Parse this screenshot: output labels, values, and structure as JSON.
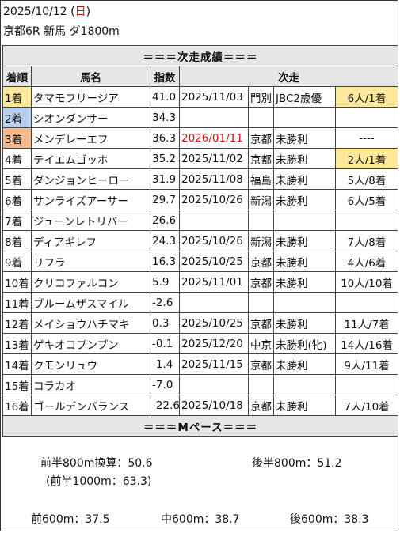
{
  "header": {
    "date": "2025/10/12",
    "dow": "日",
    "race_info": "京都6R 新馬 ダ1800m"
  },
  "table": {
    "title": "＝＝＝次走成績＝＝＝",
    "headers": {
      "rank": "着順",
      "horse": "馬名",
      "index": "指数",
      "next": "次走"
    },
    "rows": [
      {
        "rank": "1着",
        "horse": "タマモフリージア",
        "index": "41.0",
        "date": "2025/11/03",
        "place": "門別",
        "race": "JBC2歳優",
        "result": "6人/1着",
        "rank_hl": "yellow",
        "result_hl": "yellow",
        "date_red": false
      },
      {
        "rank": "2着",
        "horse": "シオンダンサー",
        "index": "34.3",
        "date": "",
        "place": "",
        "race": "",
        "result": "",
        "rank_hl": "blue",
        "result_hl": "",
        "date_red": false
      },
      {
        "rank": "3着",
        "horse": "メンデレーエフ",
        "index": "36.3",
        "date": "2026/01/11",
        "place": "京都",
        "race": "未勝利",
        "result": "----",
        "rank_hl": "orange",
        "result_hl": "",
        "date_red": true
      },
      {
        "rank": "4着",
        "horse": "テイエムゴッホ",
        "index": "35.2",
        "date": "2025/11/02",
        "place": "京都",
        "race": "未勝利",
        "result": "2人/1着",
        "rank_hl": "",
        "result_hl": "yellow",
        "date_red": false
      },
      {
        "rank": "5着",
        "horse": "ダンジョンヒーロー",
        "index": "31.9",
        "date": "2025/11/08",
        "place": "福島",
        "race": "未勝利",
        "result": "5人/8着",
        "rank_hl": "",
        "result_hl": "",
        "date_red": false
      },
      {
        "rank": "6着",
        "horse": "サンライズアーサー",
        "index": "29.7",
        "date": "2025/10/26",
        "place": "新潟",
        "race": "未勝利",
        "result": "6人/5着",
        "rank_hl": "",
        "result_hl": "",
        "date_red": false
      },
      {
        "rank": "7着",
        "horse": "ジューンレトリバー",
        "index": "26.6",
        "date": "",
        "place": "",
        "race": "",
        "result": "",
        "rank_hl": "",
        "result_hl": "",
        "date_red": false
      },
      {
        "rank": "8着",
        "horse": "ディアギレフ",
        "index": "24.3",
        "date": "2025/10/26",
        "place": "新潟",
        "race": "未勝利",
        "result": "7人/8着",
        "rank_hl": "",
        "result_hl": "",
        "date_red": false
      },
      {
        "rank": "9着",
        "horse": "リフラ",
        "index": "16.3",
        "date": "2025/10/25",
        "place": "京都",
        "race": "未勝利",
        "result": "4人/6着",
        "rank_hl": "",
        "result_hl": "",
        "date_red": false
      },
      {
        "rank": "10着",
        "horse": "クリコファルコン",
        "index": "5.9",
        "date": "2025/11/01",
        "place": "京都",
        "race": "未勝利",
        "result": "10人/10着",
        "rank_hl": "",
        "result_hl": "",
        "date_red": false
      },
      {
        "rank": "11着",
        "horse": "ブルームザスマイル",
        "index": "-2.6",
        "date": "",
        "place": "",
        "race": "",
        "result": "",
        "rank_hl": "",
        "result_hl": "",
        "date_red": false
      },
      {
        "rank": "12着",
        "horse": "メイショウハチマキ",
        "index": "0.3",
        "date": "2025/10/25",
        "place": "京都",
        "race": "未勝利",
        "result": "11人/7着",
        "rank_hl": "",
        "result_hl": "",
        "date_red": false
      },
      {
        "rank": "13着",
        "horse": "ゲキオコプンプン",
        "index": "-0.1",
        "date": "2025/12/20",
        "place": "中京",
        "race": "未勝利(牝)",
        "result": "14人/16着",
        "rank_hl": "",
        "result_hl": "",
        "date_red": false
      },
      {
        "rank": "14着",
        "horse": "クモンリュウ",
        "index": "-1.4",
        "date": "2025/11/15",
        "place": "京都",
        "race": "未勝利",
        "result": "9人/11着",
        "rank_hl": "",
        "result_hl": "",
        "date_red": false
      },
      {
        "rank": "15着",
        "horse": "コラカオ",
        "index": "-7.0",
        "date": "",
        "place": "",
        "race": "",
        "result": "",
        "rank_hl": "",
        "result_hl": "",
        "date_red": false
      },
      {
        "rank": "16着",
        "horse": "ゴールデンバランス",
        "index": "-22.6",
        "date": "2025/10/18",
        "place": "京都",
        "race": "未勝利",
        "result": "7人/10着",
        "rank_hl": "",
        "result_hl": "",
        "date_red": false
      }
    ]
  },
  "pace": {
    "title": "＝＝＝Mペース＝＝＝",
    "first_800": "前半800m換算：50.6",
    "second_800": "後半800m：51.2",
    "first_1000": "(前半1000m：63.3)",
    "first_600": "前600m：37.5",
    "mid_600": "中600m：38.7",
    "last_600": "後600m：38.3"
  },
  "colors": {
    "highlight_yellow": "#fde89c",
    "highlight_blue": "#b9cfee",
    "highlight_orange": "#f2b98f",
    "red_text": "#d01010"
  }
}
